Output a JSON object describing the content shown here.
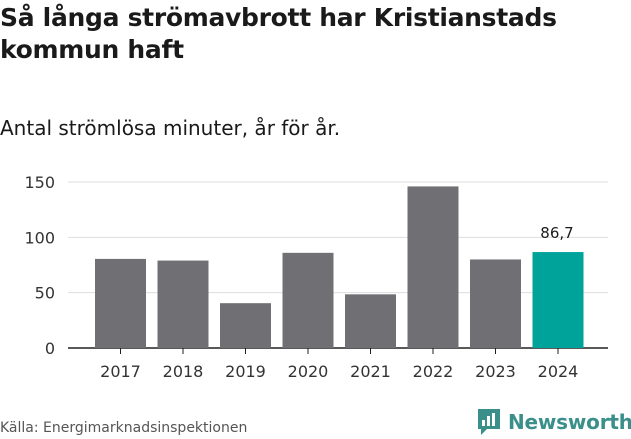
{
  "title": "Så långa strömavbrott har Kristianstads kommun haft",
  "subtitle": "Antal strömlösa minuter, år för år.",
  "source": "Källa: Energimarknadsinspektionen",
  "brand": "Newsworthy",
  "colors": {
    "bar": "#706f74",
    "highlight": "#00a39a",
    "grid": "#dddddd",
    "brand": "#3a8f8a"
  },
  "chart_data": {
    "type": "bar",
    "categories": [
      "2017",
      "2018",
      "2019",
      "2020",
      "2021",
      "2022",
      "2023",
      "2024"
    ],
    "values": [
      80.5,
      79,
      40.5,
      86,
      48.5,
      146,
      80,
      86.7
    ],
    "highlight_index": 7,
    "data_labels": [
      {
        "index": 7,
        "text": "86,7"
      }
    ],
    "yticks": [
      0,
      50,
      100,
      150
    ],
    "ylim": [
      0,
      150
    ],
    "title": "Så långa strömavbrott har Kristianstads kommun haft",
    "xlabel": "",
    "ylabel": ""
  }
}
